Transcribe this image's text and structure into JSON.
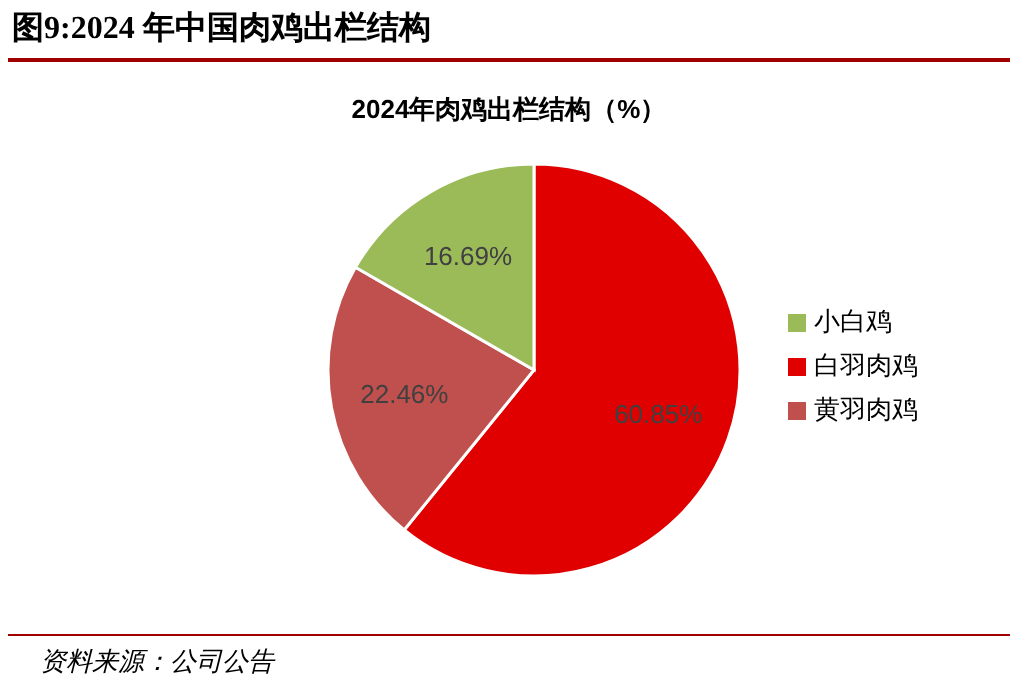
{
  "chart_data": {
    "type": "pie",
    "title": "图9:2024 年中国肉鸡出栏结构",
    "subtitle": "2024年肉鸡出栏结构（%）",
    "categories": [
      "白羽肉鸡",
      "黄羽肉鸡",
      "小白鸡"
    ],
    "values": [
      60.85,
      22.46,
      16.69
    ],
    "colors": [
      "#e00000",
      "#c0504d",
      "#9bbb59"
    ],
    "value_labels": [
      "60.85%",
      "22.46%",
      "16.69%"
    ],
    "legend": "right",
    "annotations": [
      "资料来源：公司公告"
    ]
  }
}
